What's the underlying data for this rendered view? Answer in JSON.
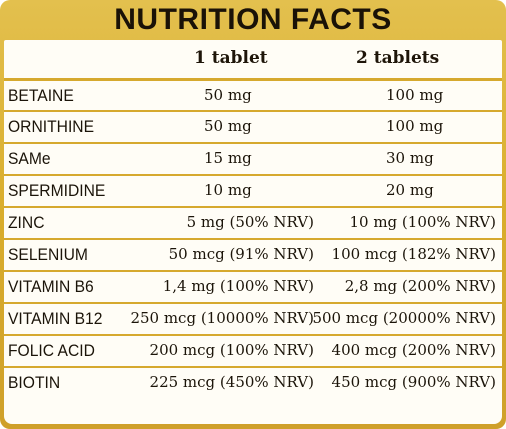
{
  "title": "NUTRITION FACTS",
  "columns": [
    "1 tablet",
    "2 tablets"
  ],
  "rows": [
    {
      "name": "BETAINE",
      "v1": "50 mg",
      "v2": "100 mg",
      "centered": true
    },
    {
      "name": "ORNITHINE",
      "v1": "50 mg",
      "v2": "100 mg",
      "centered": true
    },
    {
      "name": "SAMe",
      "v1": "15 mg",
      "v2": "30 mg",
      "centered": true
    },
    {
      "name": "SPERMIDINE",
      "v1": "10 mg",
      "v2": "20 mg",
      "centered": true
    },
    {
      "name": "ZINC",
      "v1": "5 mg (50% NRV)",
      "v2": "10 mg (100% NRV)",
      "centered": false
    },
    {
      "name": "SELENIUM",
      "v1": "50 mcg (91% NRV)",
      "v2": "100 mcg (182% NRV)",
      "centered": false
    },
    {
      "name": "VITAMIN B6",
      "v1": "1,4 mg (100% NRV)",
      "v2": "2,8 mg (200% NRV)",
      "centered": false
    },
    {
      "name": "VITAMIN B12",
      "v1": "250 mcg (10000% NRV)",
      "v2": "500 mcg (20000% NRV)",
      "centered": false
    },
    {
      "name": "FOLIC ACID",
      "v1": "200 mcg (100% NRV)",
      "v2": "400 mcg (200% NRV)",
      "centered": false
    },
    {
      "name": "BIOTIN",
      "v1": "225 mcg (450% NRV)",
      "v2": "450 mcg (900% NRV)",
      "centered": false
    }
  ]
}
